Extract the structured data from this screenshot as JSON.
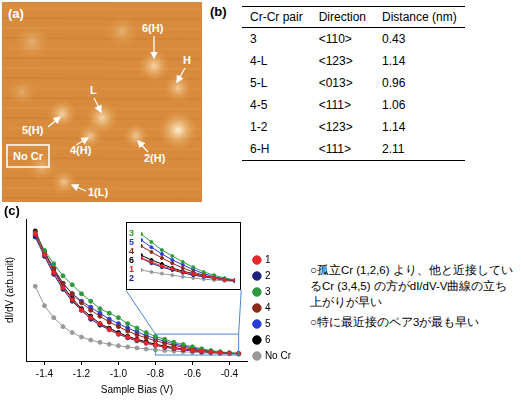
{
  "image": {
    "panel": "(a)",
    "annotations": [
      "6(H)",
      "H",
      "L",
      "5(H)",
      "4(H)",
      "2(H)",
      "1(L)"
    ],
    "box_label": "No Cr"
  },
  "table": {
    "panel": "(b)",
    "header": [
      "Cr-Cr pair",
      "Direction",
      "Distance (nm)"
    ],
    "rows": [
      [
        "3",
        "<110>",
        "0.43"
      ],
      [
        "4-L",
        "<123>",
        "1.14"
      ],
      [
        "5-L",
        "<013>",
        "0.96"
      ],
      [
        "4-5",
        "<111>",
        "1.06"
      ],
      [
        "1-2",
        "<123>",
        "1.14"
      ],
      [
        "6-H",
        "<111>",
        "2.11"
      ]
    ]
  },
  "chart_data": {
    "panel": "(c)",
    "type": "line",
    "xlabel": "Sample Bias (V)",
    "ylabel": "dI/dV (arb.unit)",
    "x": [
      -1.45,
      -1.4,
      -1.35,
      -1.3,
      -1.25,
      -1.2,
      -1.15,
      -1.1,
      -1.05,
      -1.0,
      -0.95,
      -0.9,
      -0.85,
      -0.8,
      -0.75,
      -0.7,
      -0.65,
      -0.6,
      -0.55,
      -0.5,
      -0.45,
      -0.4,
      -0.35
    ],
    "series": [
      {
        "name": "1",
        "color": "#e8262a",
        "values": [
          9.0,
          7.6,
          6.4,
          5.4,
          4.6,
          3.9,
          3.4,
          3.0,
          2.6,
          2.3,
          2.1,
          1.9,
          1.7,
          1.55,
          1.45,
          1.35,
          1.28,
          1.2,
          1.15,
          1.1,
          1.05,
          1.0,
          1.0
        ]
      },
      {
        "name": "2",
        "color": "#1a237e",
        "values": [
          8.8,
          7.5,
          6.3,
          5.3,
          4.5,
          3.9,
          3.3,
          2.9,
          2.6,
          2.3,
          2.05,
          1.85,
          1.7,
          1.55,
          1.42,
          1.32,
          1.25,
          1.18,
          1.12,
          1.08,
          1.04,
          1.0,
          0.98
        ]
      },
      {
        "name": "3",
        "color": "#2e9a3e",
        "values": [
          9.0,
          7.9,
          7.0,
          6.2,
          5.6,
          5.0,
          4.5,
          4.0,
          3.7,
          3.4,
          3.0,
          2.7,
          2.4,
          2.15,
          1.95,
          1.75,
          1.6,
          1.45,
          1.32,
          1.2,
          1.12,
          1.05,
          1.0
        ]
      },
      {
        "name": "4",
        "color": "#8b2a1a",
        "values": [
          9.1,
          7.8,
          6.7,
          5.7,
          5.0,
          4.4,
          3.9,
          3.5,
          3.1,
          2.8,
          2.5,
          2.25,
          2.05,
          1.85,
          1.7,
          1.55,
          1.42,
          1.3,
          1.2,
          1.12,
          1.06,
          1.02,
          1.0
        ]
      },
      {
        "name": "5",
        "color": "#2a3de0",
        "values": [
          8.9,
          7.7,
          6.6,
          5.7,
          5.0,
          4.5,
          4.1,
          3.7,
          3.3,
          3.0,
          2.7,
          2.45,
          2.2,
          2.0,
          1.82,
          1.65,
          1.5,
          1.38,
          1.26,
          1.16,
          1.08,
          1.03,
          1.0
        ]
      },
      {
        "name": "6",
        "color": "#000000",
        "values": [
          9.2,
          7.8,
          6.6,
          5.5,
          4.7,
          4.0,
          3.5,
          3.0,
          2.7,
          2.4,
          2.15,
          1.95,
          1.78,
          1.62,
          1.5,
          1.4,
          1.3,
          1.22,
          1.16,
          1.1,
          1.05,
          1.02,
          1.0
        ]
      },
      {
        "name": "No Cr",
        "color": "#999999",
        "values": [
          5.5,
          4.2,
          3.4,
          2.8,
          2.4,
          2.1,
          1.9,
          1.75,
          1.62,
          1.52,
          1.44,
          1.37,
          1.3,
          1.25,
          1.2,
          1.16,
          1.12,
          1.08,
          1.05,
          1.02,
          1.0,
          0.98,
          0.96
        ]
      }
    ],
    "xlim": [
      -1.5,
      -0.3
    ],
    "xticks": [
      -1.4,
      -1.2,
      {
        "value": -1,
        "label": "-1.0"
      },
      -0.8,
      -0.6,
      -0.4
    ],
    "ylim": [
      0.5,
      10
    ],
    "tick_labels": "x",
    "grid": false,
    "legend": "right",
    "marker": "circle",
    "inset": {
      "xlim": [
        -0.8,
        -0.35
      ],
      "ylim": [
        0.9,
        2.3
      ],
      "labels": [
        "1",
        "2",
        "3",
        "4",
        "5",
        "6"
      ]
    }
  },
  "notes": [
    "○孤立Cr (1,2,6) より、他と近接しているCr (3,4,5) の方がdI/dV-V曲線の立ち上がりが早い",
    "○特に最近接のペア3が最も早い"
  ]
}
